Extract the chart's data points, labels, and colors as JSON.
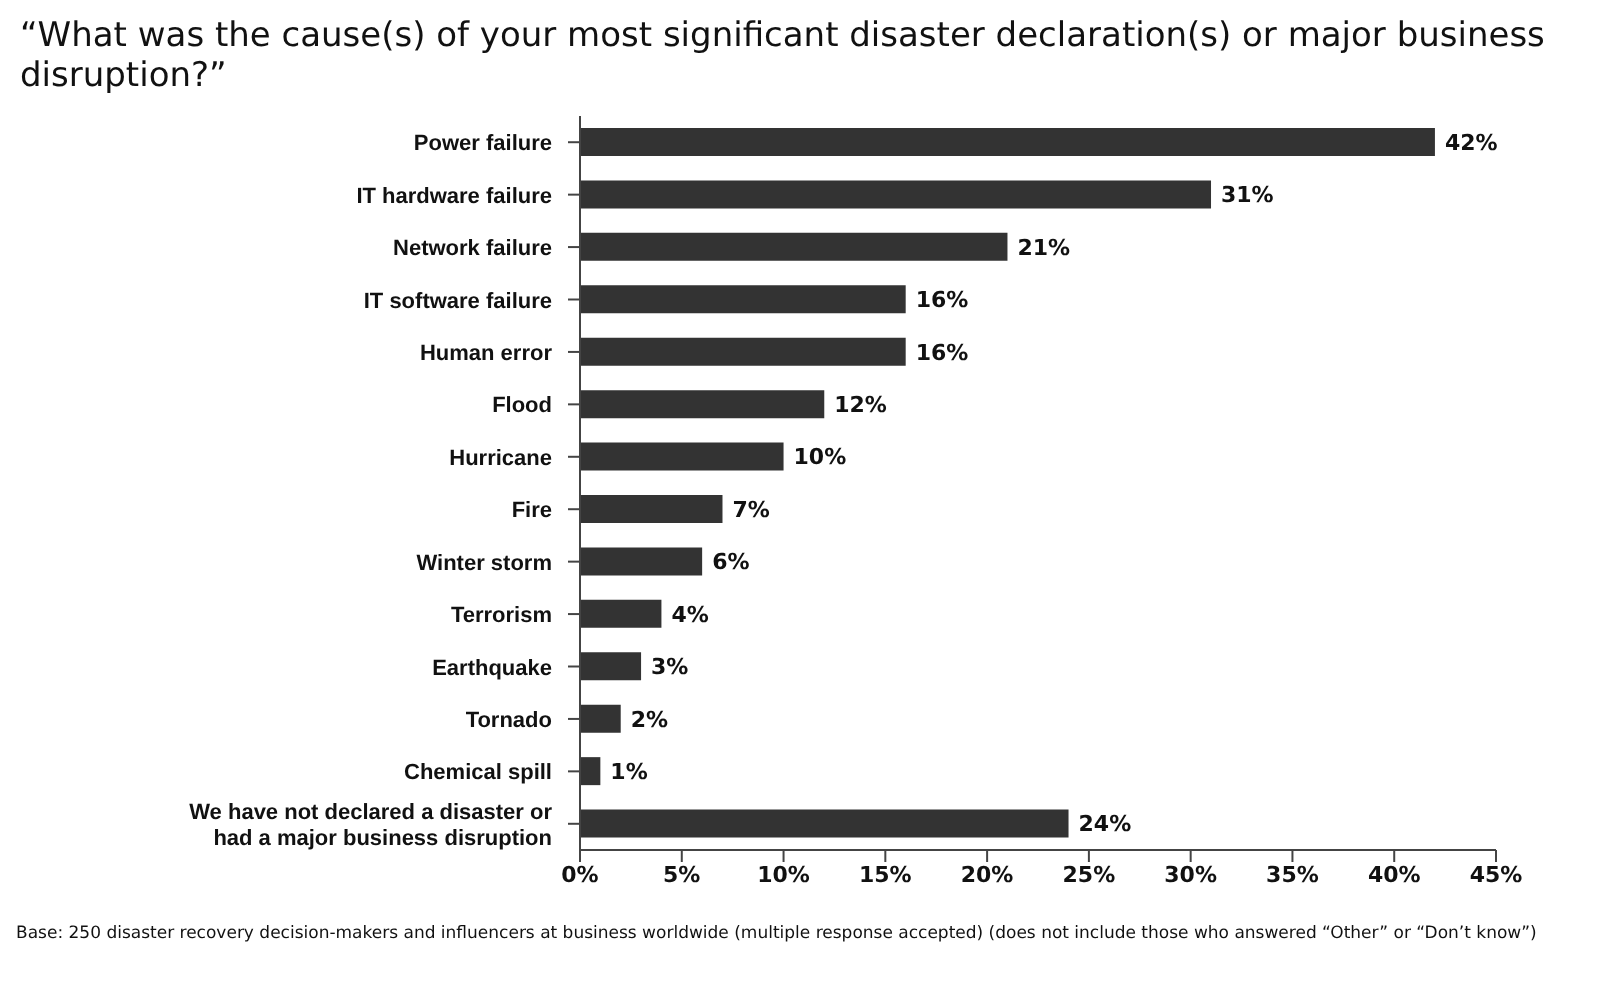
{
  "chart_data": {
    "type": "bar",
    "orientation": "horizontal",
    "title": "“What was the cause(s) of your most significant disaster declaration(s) or major business disruption?”",
    "categories": [
      "Power failure",
      "IT hardware failure",
      "Network failure",
      "IT software failure",
      "Human error",
      "Flood",
      "Hurricane",
      "Fire",
      "Winter storm",
      "Terrorism",
      "Earthquake",
      "Tornado",
      "Chemical spill",
      "We have not declared a disaster or had a major business disruption"
    ],
    "values": [
      42,
      31,
      21,
      16,
      16,
      12,
      10,
      7,
      6,
      4,
      3,
      2,
      1,
      24
    ],
    "color": "#333333",
    "xlim": [
      0,
      45
    ],
    "xticks": [
      {
        "value": 0,
        "label": "0%"
      },
      {
        "value": 5,
        "label": "5%"
      },
      {
        "value": 10,
        "label": "10%"
      },
      {
        "value": 15,
        "label": "15%"
      },
      {
        "value": 20,
        "label": "20%"
      },
      {
        "value": 25,
        "label": "25%"
      },
      {
        "value": 30,
        "label": "30%"
      },
      {
        "value": 35,
        "label": "35%"
      },
      {
        "value": 40,
        "label": "40%"
      },
      {
        "value": 45,
        "label": "45%"
      }
    ],
    "value_labels": [
      "42%",
      "31%",
      "21%",
      "16%",
      "16%",
      "12%",
      "10%",
      "7%",
      "6%",
      "4%",
      "3%",
      "2%",
      "1%",
      "24%"
    ],
    "grid": false,
    "legend": false,
    "annotations": [
      "Base: 250 disaster recovery decision-makers and influencers at business worldwide (multiple response accepted) (does not include those who answered “Other” or “Don’t know”)"
    ]
  }
}
